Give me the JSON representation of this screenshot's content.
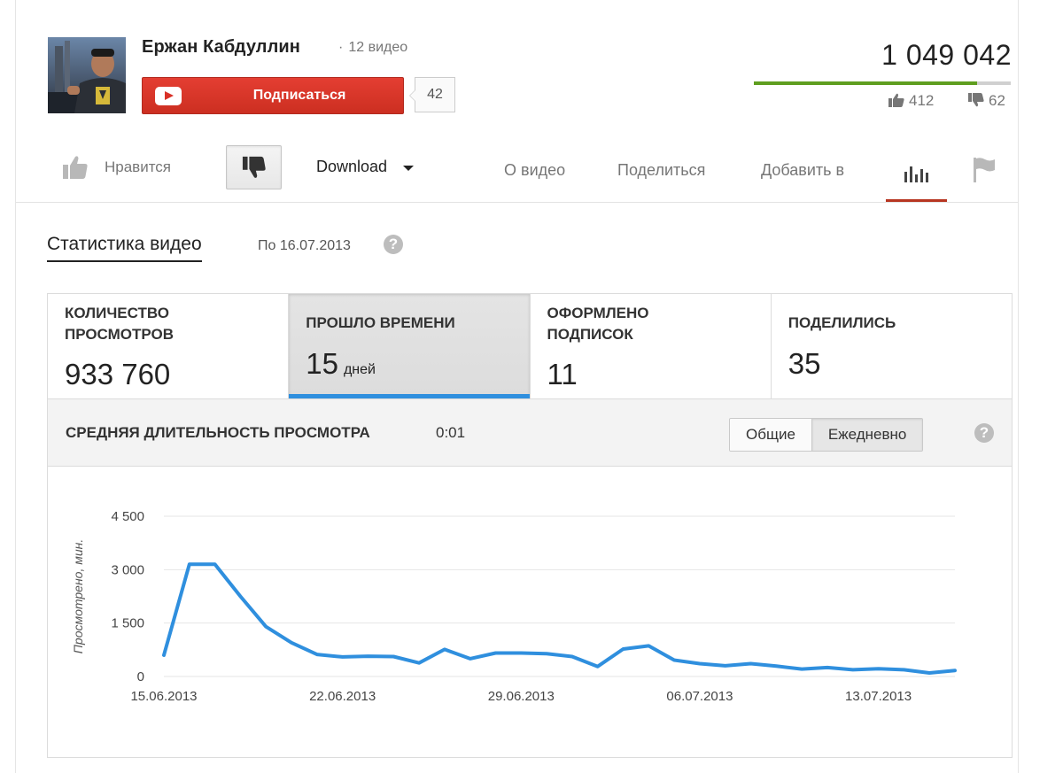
{
  "channel": {
    "name": "Ержан Кабдуллин",
    "video_count": "12 видео",
    "subscribe_label": "Подписаться",
    "subscriber_count": "42"
  },
  "video_stats": {
    "views_total": "1 049 042",
    "likes": "412",
    "dislikes": "62",
    "like_ratio": 0.87
  },
  "action_bar": {
    "like_label": "Нравится",
    "download_label": "Download",
    "tabs": [
      {
        "label": "О видео"
      },
      {
        "label": "Поделиться"
      },
      {
        "label": "Добавить в"
      }
    ]
  },
  "stats_panel": {
    "title": "Статистика видео",
    "date_note": "По 16.07.2013",
    "help_glyph": "?",
    "metrics": [
      {
        "label": "КОЛИЧЕСТВО\nПРОСМОТРОВ",
        "value": "933 760",
        "unit": ""
      },
      {
        "label": "ПРОШЛО ВРЕМЕНИ",
        "value": "15",
        "unit": "дней"
      },
      {
        "label": "ОФОРМЛЕНО\nПОДПИСОК",
        "value": "11",
        "unit": ""
      },
      {
        "label": "ПОДЕЛИЛИСЬ",
        "value": "35",
        "unit": ""
      }
    ],
    "avg_duration_label": "СРЕДНЯЯ ДЛИТЕЛЬНОСТЬ ПРОСМОТРА",
    "avg_duration_value": "0:01",
    "toggle_total": "Общие",
    "toggle_daily": "Ежедневно"
  },
  "colors": {
    "accent_red": "#d93127",
    "line_blue": "#2f8fde",
    "ratio_green": "#5f9e1f",
    "tab_underline": "#b73521"
  },
  "chart_data": {
    "type": "line",
    "ylabel": "Просмотрено, мин.",
    "ylim": [
      0,
      4500
    ],
    "y_ticks": [
      {
        "value": 0,
        "label": "0"
      },
      {
        "value": 1500,
        "label": "1 500"
      },
      {
        "value": 3000,
        "label": "3 000"
      },
      {
        "value": 4500,
        "label": "4 500"
      }
    ],
    "x_ticks": [
      {
        "day": 0,
        "label": "15.06.2013"
      },
      {
        "day": 7,
        "label": "22.06.2013"
      },
      {
        "day": 14,
        "label": "29.06.2013"
      },
      {
        "day": 21,
        "label": "06.07.2013"
      },
      {
        "day": 28,
        "label": "13.07.2013"
      }
    ],
    "grid": true,
    "series": [
      {
        "values": [
          600,
          3150,
          3150,
          2250,
          1400,
          950,
          620,
          550,
          570,
          560,
          380,
          760,
          500,
          660,
          660,
          640,
          560,
          280,
          770,
          860,
          460,
          360,
          300,
          360,
          290,
          210,
          250,
          190,
          220,
          190,
          100,
          170
        ]
      }
    ]
  }
}
